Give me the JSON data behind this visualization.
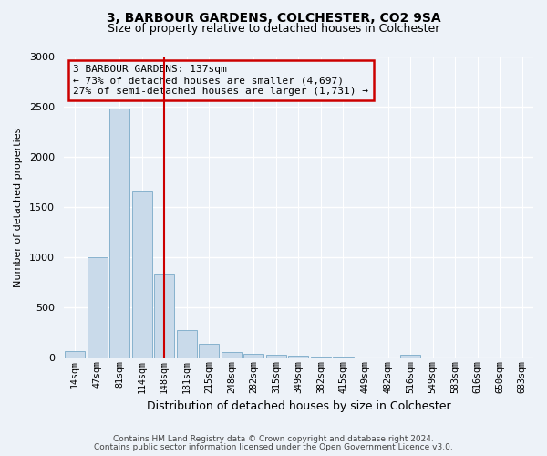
{
  "title": "3, BARBOUR GARDENS, COLCHESTER, CO2 9SA",
  "subtitle": "Size of property relative to detached houses in Colchester",
  "xlabel": "Distribution of detached houses by size in Colchester",
  "ylabel": "Number of detached properties",
  "bar_color": "#c9daea",
  "bar_edge_color": "#7aaac8",
  "categories": [
    "14sqm",
    "47sqm",
    "81sqm",
    "114sqm",
    "148sqm",
    "181sqm",
    "215sqm",
    "248sqm",
    "282sqm",
    "315sqm",
    "349sqm",
    "382sqm",
    "415sqm",
    "449sqm",
    "482sqm",
    "516sqm",
    "549sqm",
    "583sqm",
    "616sqm",
    "650sqm",
    "683sqm"
  ],
  "values": [
    68,
    1000,
    2480,
    1660,
    840,
    280,
    135,
    55,
    42,
    30,
    20,
    15,
    10,
    0,
    0,
    28,
    0,
    0,
    0,
    0,
    0
  ],
  "ylim": [
    0,
    3000
  ],
  "yticks": [
    0,
    500,
    1000,
    1500,
    2000,
    2500,
    3000
  ],
  "vline_x_idx": 4,
  "vline_color": "#cc0000",
  "annotation_text": "3 BARBOUR GARDENS: 137sqm\n← 73% of detached houses are smaller (4,697)\n27% of semi-detached houses are larger (1,731) →",
  "annotation_box_edgecolor": "#cc0000",
  "footer_line1": "Contains HM Land Registry data © Crown copyright and database right 2024.",
  "footer_line2": "Contains public sector information licensed under the Open Government Licence v3.0.",
  "bg_color": "#edf2f8",
  "grid_color": "#d0dce8"
}
